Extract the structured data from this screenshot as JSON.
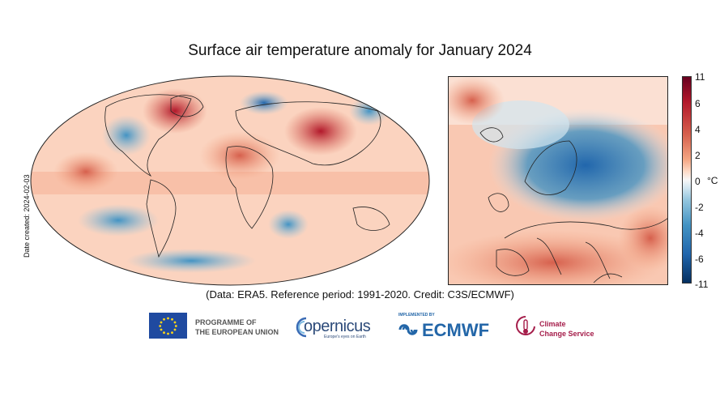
{
  "title": "Surface air temperature anomaly for January 2024",
  "caption": "(Data: ERA5.  Reference period: 1991-2020.  Credit: C3S/ECMWF)",
  "side_date": "Date created: 2024-02-03",
  "colorbar": {
    "unit": "°C",
    "ticks": [
      "11",
      "6",
      "4",
      "2",
      "0",
      "-2",
      "-4",
      "-6",
      "-11"
    ],
    "range": [
      -11,
      11
    ],
    "colors": [
      "#67001f",
      "#b2182b",
      "#d6604d",
      "#f4a582",
      "#f7f7f7",
      "#92c5de",
      "#4393c3",
      "#2166ac",
      "#053061"
    ]
  },
  "maps": {
    "world": {
      "projection": "robinson",
      "dominant": "warm"
    },
    "europe": {
      "region": "Europe",
      "cold_anomaly": "Scandinavia"
    }
  },
  "logos": {
    "eu_line1": "PROGRAMME OF",
    "eu_line2": "THE EUROPEAN UNION",
    "copernicus": "opernicus",
    "copernicus_sub": "Europe's eyes on Earth",
    "ecmwf_impl": "IMPLEMENTED BY",
    "ecmwf": "ECMWF",
    "c3s_line1": "Climate",
    "c3s_line2": "Change Service"
  }
}
